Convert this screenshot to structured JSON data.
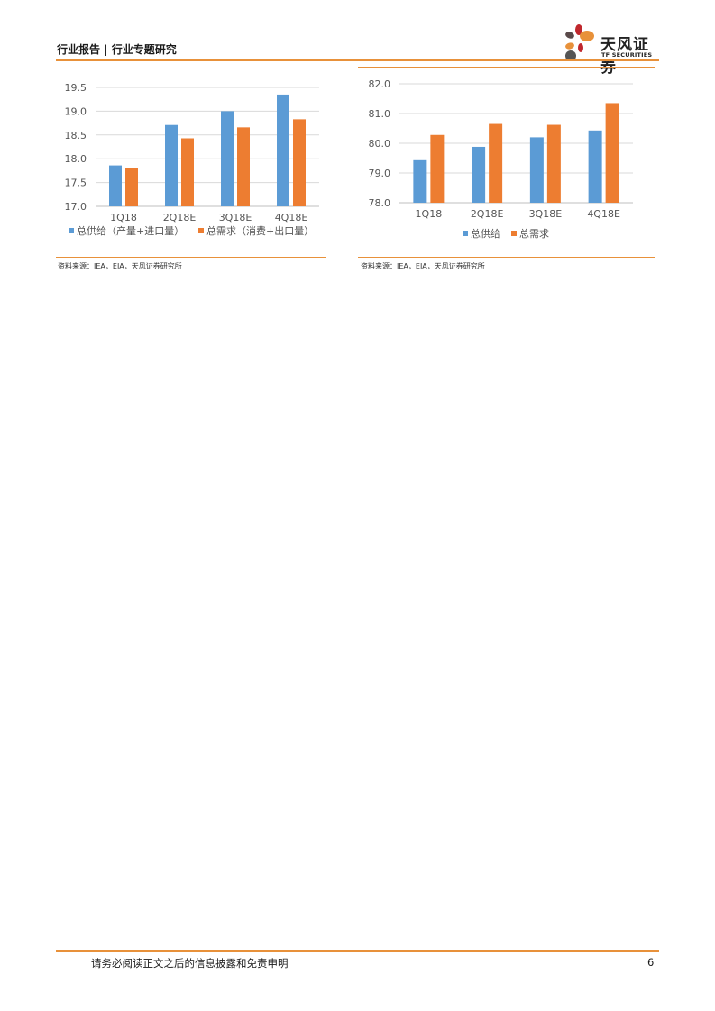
{
  "header": {
    "title": "行业报告 | 行业专题研究",
    "logo_cn": "天风证券",
    "logo_en": "TF SECURITIES"
  },
  "colors": {
    "accent": "#e8913a",
    "supply": "#5b9bd5",
    "demand": "#ed7d31"
  },
  "chart_data": [
    {
      "type": "bar",
      "title": "",
      "categories": [
        "1Q18",
        "2Q18E",
        "3Q18E",
        "4Q18E"
      ],
      "series": [
        {
          "name": "总供给（产量+进口量）",
          "values": [
            17.86,
            18.71,
            19.0,
            19.35
          ]
        },
        {
          "name": "总需求（消费+出口量）",
          "values": [
            17.8,
            18.43,
            18.66,
            18.83
          ]
        }
      ],
      "yticks": [
        "17.0",
        "17.5",
        "18.0",
        "18.5",
        "19.0",
        "19.5"
      ],
      "ylim": [
        17.0,
        19.5
      ],
      "grid": true,
      "legend": "bottom",
      "source": "资料来源：IEA，EIA，天风证券研究所"
    },
    {
      "type": "bar",
      "title": "",
      "categories": [
        "1Q18",
        "2Q18E",
        "3Q18E",
        "4Q18E"
      ],
      "series": [
        {
          "name": "总供给",
          "values": [
            79.43,
            79.88,
            80.2,
            80.43
          ]
        },
        {
          "name": "总需求",
          "values": [
            80.28,
            80.65,
            80.62,
            81.35
          ]
        }
      ],
      "yticks": [
        "78.0",
        "79.0",
        "80.0",
        "81.0",
        "82.0"
      ],
      "ylim": [
        78.0,
        82.0
      ],
      "grid": true,
      "legend": "bottom",
      "source": "资料来源：IEA，EIA，天风证券研究所"
    }
  ],
  "footer": {
    "disclaimer": "请务必阅读正文之后的信息披露和免责申明",
    "page": "6"
  }
}
